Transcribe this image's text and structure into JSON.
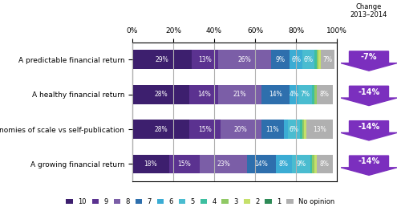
{
  "chart_data": {
    "type": "bar",
    "orientation": "horizontal",
    "stacked": true,
    "data_labels": true,
    "grid": true,
    "legend": "lower center",
    "categories": [
      "A predictable financial return",
      "A healthy financial return",
      "Cost economies of scale vs self-publication",
      "A growing financial return"
    ],
    "xlim": [
      0,
      100
    ],
    "xticks": [
      {
        "value": 0,
        "label": "0%"
      },
      {
        "value": 20,
        "label": "20%"
      },
      {
        "value": 40,
        "label": "40%"
      },
      {
        "value": 60,
        "label": "60%"
      },
      {
        "value": 80,
        "label": "80%"
      },
      {
        "value": 100,
        "label": "100%"
      }
    ],
    "series": [
      {
        "name": "10",
        "color": "#3d1f6e",
        "values": [
          29,
          28,
          28,
          18
        ],
        "value_labels": [
          "29%",
          "28%",
          "28%",
          "18%"
        ]
      },
      {
        "name": "9",
        "color": "#5b3290",
        "values": [
          13,
          14,
          15,
          15
        ],
        "value_labels": [
          "13%",
          "14%",
          "15%",
          "15%"
        ]
      },
      {
        "name": "8",
        "color": "#7b5ea7",
        "values": [
          26,
          21,
          20,
          23
        ],
        "value_labels": [
          "26%",
          "21%",
          "20%",
          "23%"
        ]
      },
      {
        "name": "7",
        "color": "#2e6fad",
        "values": [
          9,
          14,
          11,
          14
        ],
        "value_labels": [
          "9%",
          "14%",
          "11%",
          "14%"
        ]
      },
      {
        "name": "6",
        "color": "#3bacd4",
        "values": [
          6,
          4,
          2,
          8
        ],
        "value_labels": [
          "6%",
          "4%",
          null,
          "8%"
        ]
      },
      {
        "name": "5",
        "color": "#4abcd0",
        "values": [
          6,
          7,
          6,
          9
        ],
        "value_labels": [
          "6%",
          "7%",
          "6%",
          "9%"
        ]
      },
      {
        "name": "4",
        "color": "#3dbfa0",
        "values": [
          1,
          1,
          1,
          1
        ],
        "value_labels": [
          null,
          null,
          null,
          null
        ]
      },
      {
        "name": "3",
        "color": "#90c965",
        "values": [
          1,
          1,
          1,
          1
        ],
        "value_labels": [
          null,
          null,
          null,
          null
        ]
      },
      {
        "name": "2",
        "color": "#c5e06a",
        "values": [
          1,
          0,
          1,
          1
        ],
        "value_labels": [
          null,
          null,
          null,
          null
        ]
      },
      {
        "name": "1",
        "color": "#2e8b57",
        "values": [
          0,
          0,
          0,
          0
        ],
        "value_labels": [
          null,
          null,
          null,
          null
        ]
      },
      {
        "name": "No opinion",
        "color": "#b0b0b0",
        "values": [
          7,
          8,
          13,
          8
        ],
        "value_labels": [
          "7%",
          "8%",
          "13%",
          "8%"
        ]
      }
    ],
    "changes": {
      "title": "Change\n2013–2014",
      "color": "#7b2fbe",
      "values": [
        -7,
        -14,
        -14,
        -14
      ],
      "value_labels": [
        "-7%",
        "-14%",
        "-14%",
        "-14%"
      ]
    }
  }
}
